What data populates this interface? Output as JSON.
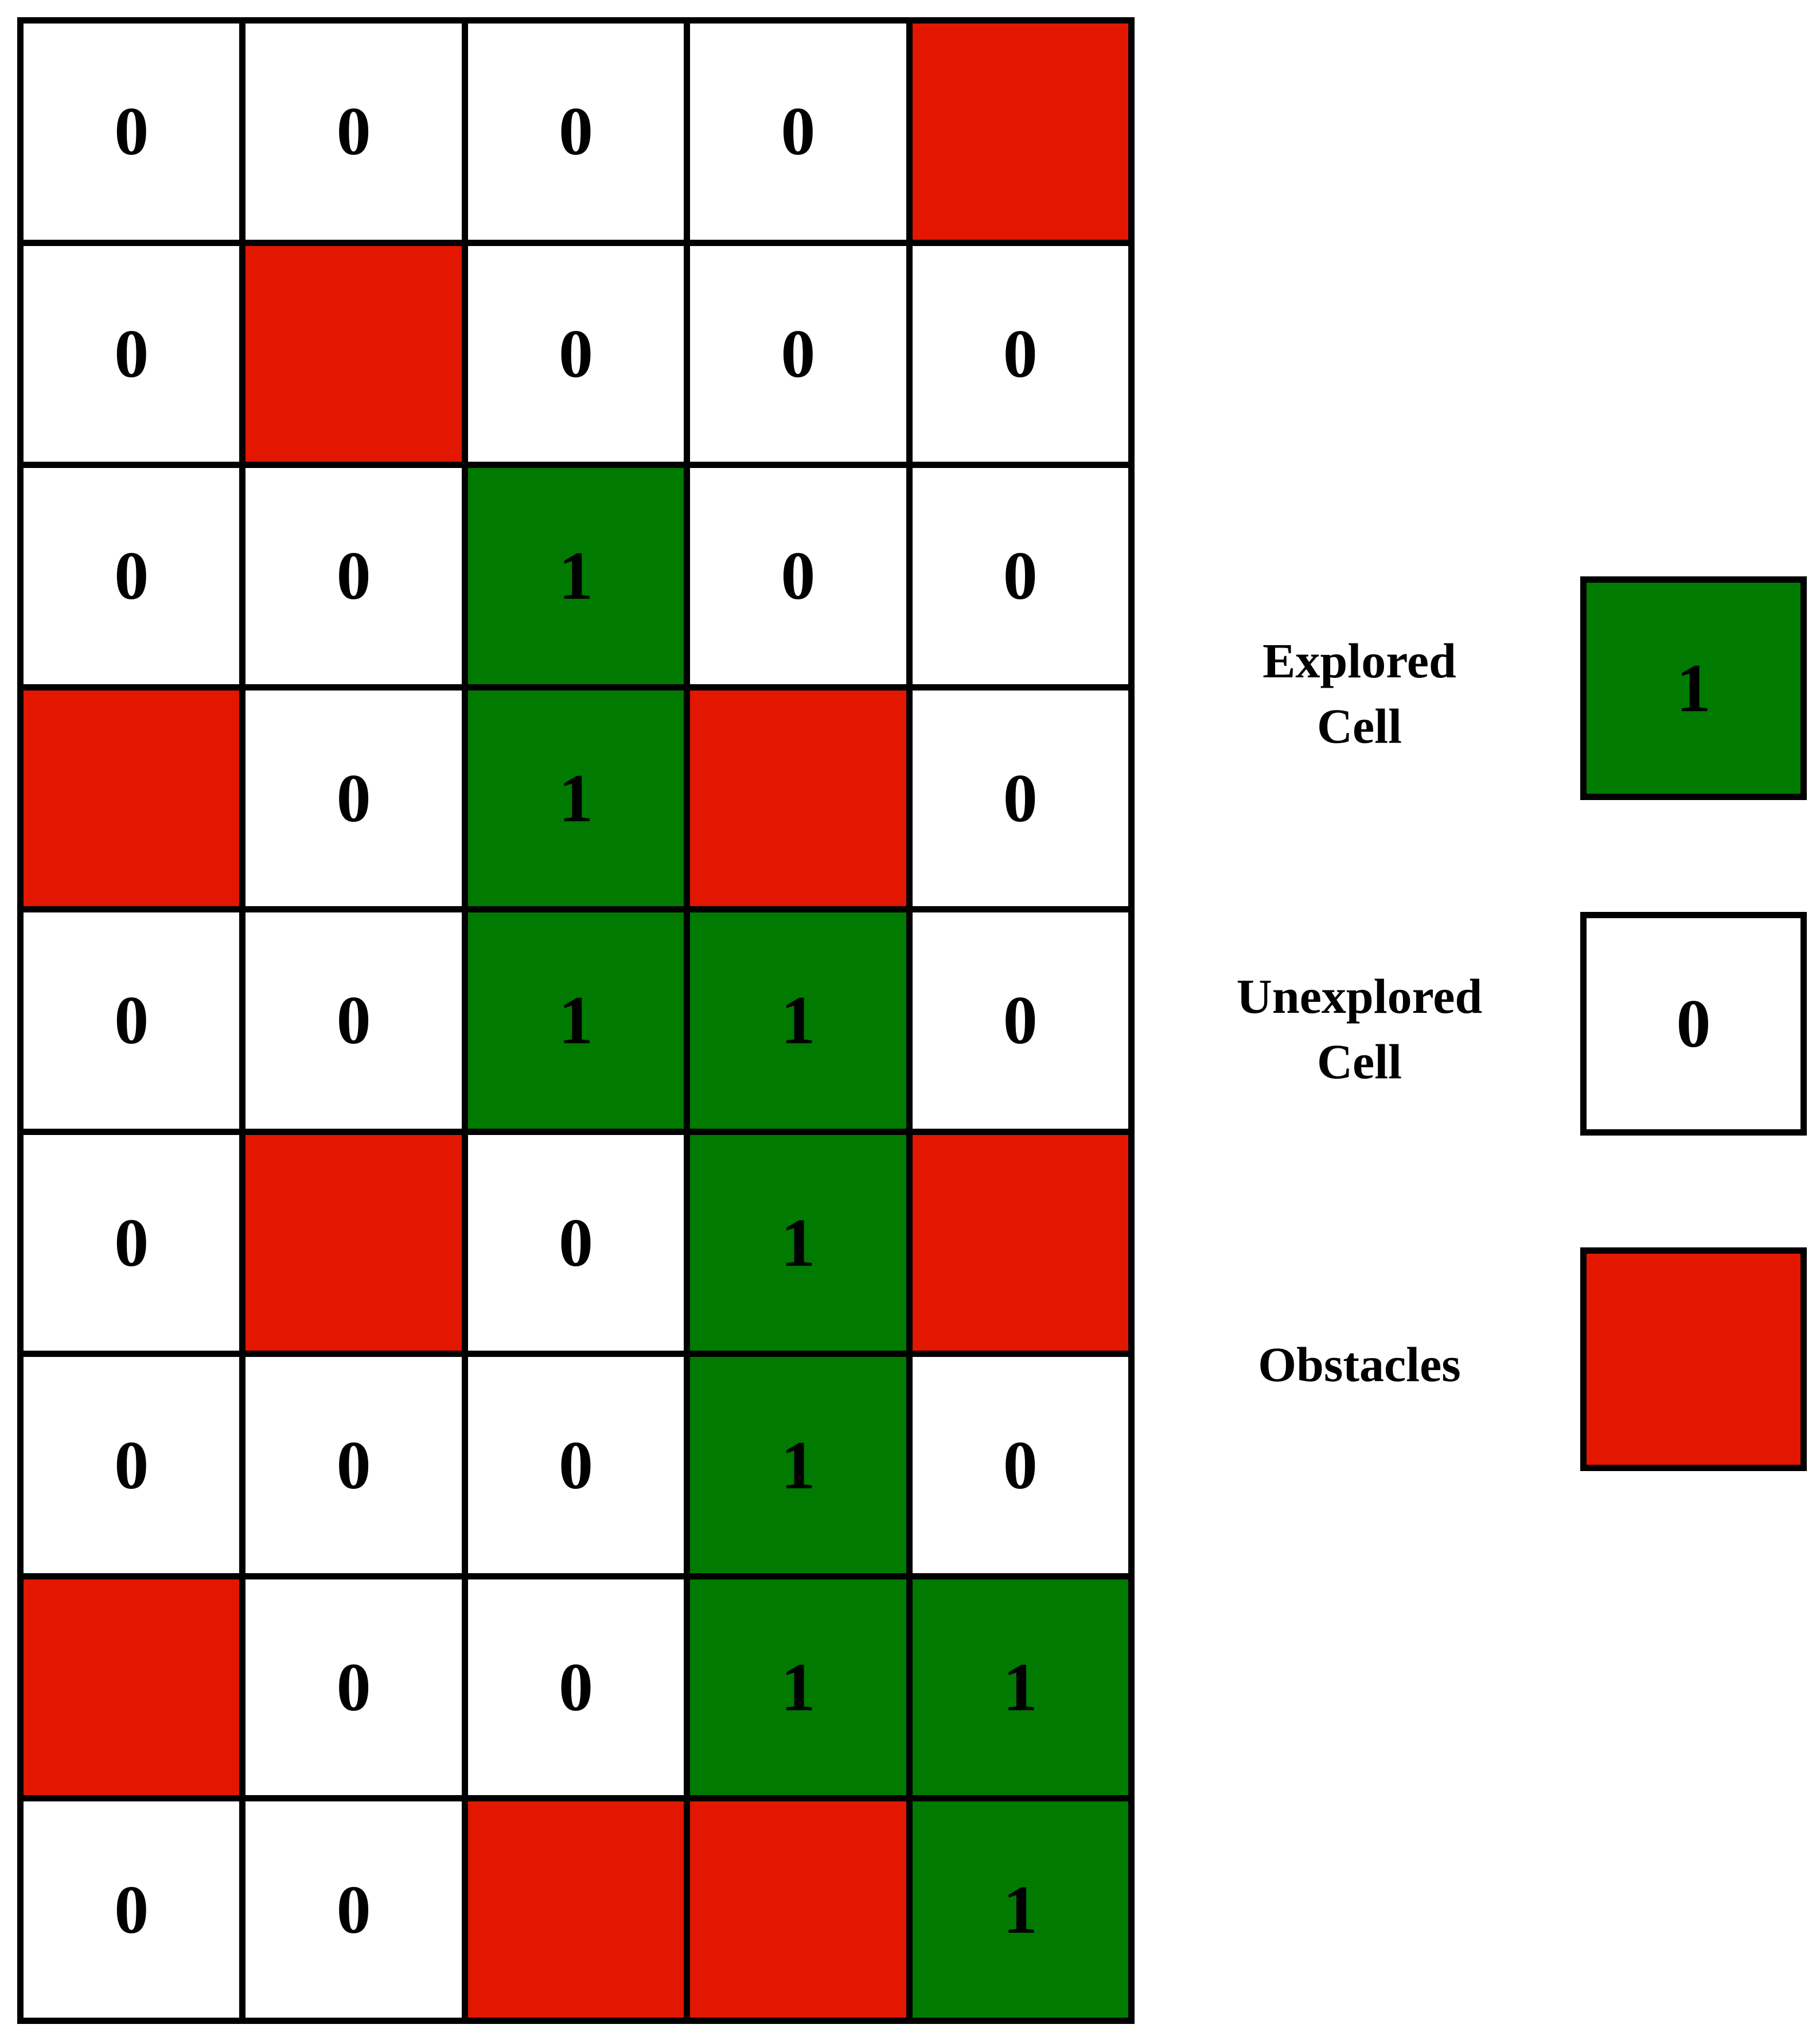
{
  "colors": {
    "explored": "#007a00",
    "unexplored": "#ffffff",
    "obstacle": "#e31700",
    "border": "#000000"
  },
  "grid": {
    "rows": [
      [
        "0",
        "0",
        "0",
        "0",
        "X"
      ],
      [
        "0",
        "X",
        "0",
        "0",
        "0"
      ],
      [
        "0",
        "0",
        "1",
        "0",
        "0"
      ],
      [
        "X",
        "0",
        "1",
        "X",
        "0"
      ],
      [
        "0",
        "0",
        "1",
        "1",
        "0"
      ],
      [
        "0",
        "X",
        "0",
        "1",
        "X"
      ],
      [
        "0",
        "0",
        "0",
        "1",
        "0"
      ],
      [
        "X",
        "0",
        "0",
        "1",
        "1"
      ],
      [
        "0",
        "0",
        "X",
        "X",
        "1"
      ]
    ]
  },
  "legend": {
    "explored": {
      "label_line1": "Explored",
      "label_line2": "Cell",
      "value": "1"
    },
    "unexplored": {
      "label_line1": "Unexplored",
      "label_line2": "Cell",
      "value": "0"
    },
    "obstacles": {
      "label": "Obstacles"
    }
  }
}
